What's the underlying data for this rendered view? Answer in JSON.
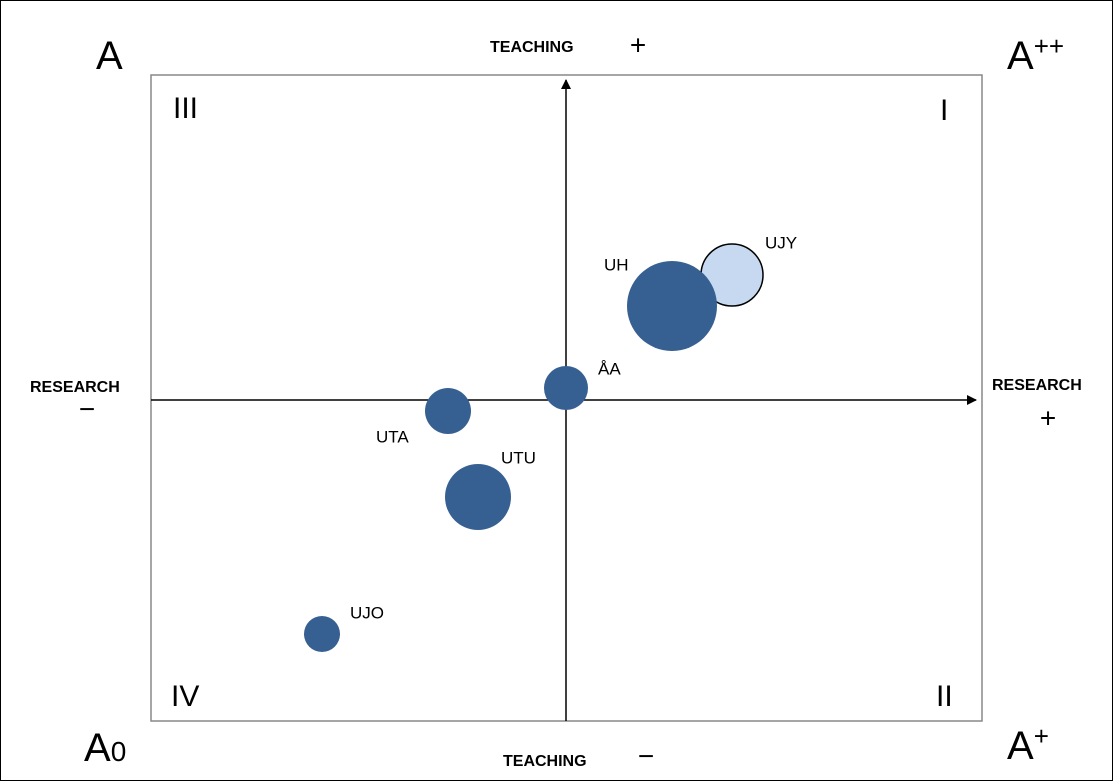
{
  "corners": [
    {
      "base": "A",
      "sup": ""
    },
    {
      "base": "A",
      "sup": "++"
    },
    {
      "base": "A",
      "sub": "0"
    },
    {
      "base": "A",
      "sup": "+"
    }
  ],
  "quadrants": [
    "III",
    "I",
    "IV",
    "II"
  ],
  "axes": {
    "top": {
      "label": "TEACHING",
      "sign": "+"
    },
    "bottom": {
      "label": "TEACHING",
      "sign": "−"
    },
    "left": {
      "label": "RESEARCH",
      "sign": "−"
    },
    "right": {
      "label": "RESEARCH",
      "sign": "+"
    }
  },
  "nodes": [
    {
      "label": "UH"
    },
    {
      "label": "UJY"
    },
    {
      "label": "ÅA"
    },
    {
      "label": "UTA"
    },
    {
      "label": "UTU"
    },
    {
      "label": "UJO"
    }
  ]
}
